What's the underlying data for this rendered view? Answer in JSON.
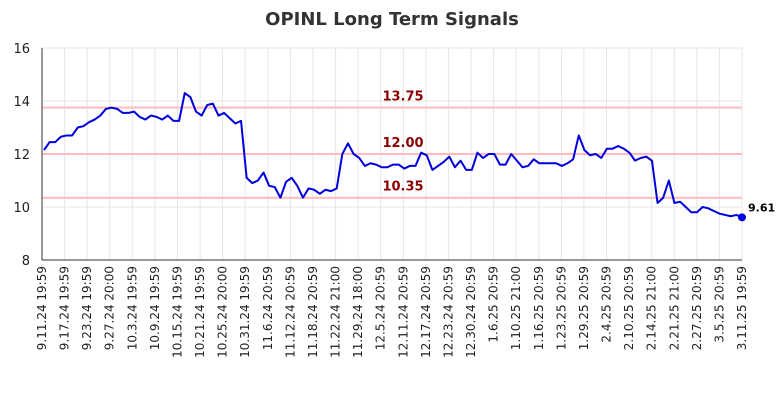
{
  "chart_data": {
    "type": "line",
    "title": "OPINL Long Term Signals",
    "xlabel": "",
    "ylabel": "",
    "ylim": [
      8,
      16
    ],
    "y_ticks": [
      8,
      10,
      12,
      14,
      16
    ],
    "grid": true,
    "x_ticks": [
      "9.11.24 19:59",
      "9.17.24 19:59",
      "9.23.24 19:59",
      "9.27.24 20:00",
      "10.3.24 19:59",
      "10.9.24 19:59",
      "10.15.24 19:59",
      "10.21.24 19:59",
      "10.25.24 20:00",
      "10.31.24 19:59",
      "11.6.24 20:59",
      "11.12.24 20:59",
      "11.18.24 20:59",
      "11.22.24 21:00",
      "11.29.24 18:00",
      "12.5.24 20:59",
      "12.11.24 20:59",
      "12.17.24 20:59",
      "12.23.24 20:59",
      "12.30.24 20:59",
      "1.6.25 20:59",
      "1.10.25 21:00",
      "1.16.25 20:59",
      "1.23.25 20:59",
      "1.29.25 20:59",
      "2.4.25 20:59",
      "2.10.25 20:59",
      "2.14.25 21:00",
      "2.21.25 21:00",
      "2.27.25 20:59",
      "3.5.25 20:59",
      "3.11.25 19:59"
    ],
    "series": [
      {
        "color": "#0000dd",
        "values": [
          12.15,
          12.45,
          12.45,
          12.65,
          12.7,
          12.7,
          13.0,
          13.05,
          13.2,
          13.3,
          13.45,
          13.7,
          13.75,
          13.7,
          13.55,
          13.55,
          13.6,
          13.4,
          13.3,
          13.45,
          13.4,
          13.3,
          13.45,
          13.25,
          13.25,
          14.3,
          14.15,
          13.6,
          13.45,
          13.85,
          13.9,
          13.45,
          13.55,
          13.35,
          13.15,
          13.25,
          11.1,
          10.9,
          11.0,
          11.3,
          10.8,
          10.75,
          10.35,
          10.95,
          11.1,
          10.8,
          10.35,
          10.7,
          10.65,
          10.5,
          10.65,
          10.6,
          10.7,
          12.0,
          12.4,
          12.0,
          11.85,
          11.55,
          11.65,
          11.6,
          11.5,
          11.5,
          11.6,
          11.6,
          11.45,
          11.55,
          11.55,
          12.05,
          11.95,
          11.4,
          11.55,
          11.7,
          11.9,
          11.5,
          11.75,
          11.4,
          11.4,
          12.05,
          11.85,
          12.0,
          12.0,
          11.6,
          11.6,
          12.0,
          11.75,
          11.5,
          11.55,
          11.8,
          11.65,
          11.65,
          11.65,
          11.65,
          11.55,
          11.65,
          11.8,
          12.7,
          12.15,
          11.95,
          12.0,
          11.85,
          12.2,
          12.2,
          12.3,
          12.2,
          12.05,
          11.75,
          11.85,
          11.9,
          11.75,
          10.15,
          10.35,
          11.0,
          10.15,
          10.2,
          10.0,
          9.8,
          9.8,
          10.0,
          9.95,
          9.85,
          9.75,
          9.7,
          9.65,
          9.7,
          9.61
        ]
      }
    ],
    "signal_lines": [
      {
        "value": 13.75,
        "label": "13.75"
      },
      {
        "value": 12.0,
        "label": "12.00"
      },
      {
        "value": 10.35,
        "label": "10.35"
      }
    ],
    "last_point_label": "9.61"
  },
  "colors": {
    "line": "#0000dd",
    "signal_line": "#ffbbbb",
    "signal_label": "#8b0000",
    "grid": "#e6e6e6",
    "axis": "#333333"
  }
}
